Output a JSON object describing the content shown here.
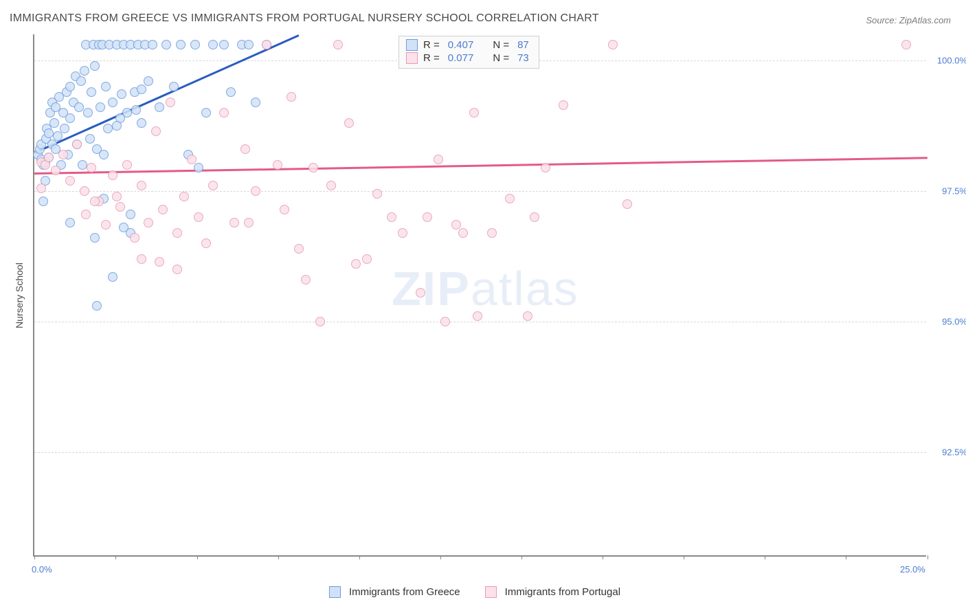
{
  "title": "IMMIGRANTS FROM GREECE VS IMMIGRANTS FROM PORTUGAL NURSERY SCHOOL CORRELATION CHART",
  "source": "Source: ZipAtlas.com",
  "y_axis_title": "Nursery School",
  "watermark": "ZIPatlas",
  "chart": {
    "type": "scatter",
    "xlim": [
      0.0,
      25.0
    ],
    "ylim": [
      90.5,
      100.5
    ],
    "x_ticks": [
      0,
      2.27,
      4.55,
      6.82,
      9.09,
      11.36,
      13.63,
      15.9,
      18.18,
      20.45,
      22.72,
      25.0
    ],
    "x_range_labels": [
      {
        "v": "0.0%",
        "at": 0.0
      },
      {
        "v": "25.0%",
        "at": 25.0
      }
    ],
    "y_gridlines": [
      92.5,
      95.0,
      97.5,
      100.0
    ],
    "y_tick_labels": [
      {
        "v": "92.5%",
        "at": 92.5
      },
      {
        "v": "95.0%",
        "at": 95.0
      },
      {
        "v": "97.5%",
        "at": 97.5
      },
      {
        "v": "100.0%",
        "at": 100.0
      }
    ],
    "background_color": "#ffffff",
    "grid_color": "#d8d8d8",
    "marker_radius": 7,
    "marker_border": 1.3,
    "series": [
      {
        "name": "Immigrants from Greece",
        "fill": "#d2e2f6",
        "stroke": "#6a9be0",
        "R": "0.407",
        "N": "87",
        "trend": {
          "x1": 0.0,
          "y1": 98.25,
          "x2": 7.4,
          "y2": 100.5,
          "color": "#2a5cc0"
        },
        "points": [
          [
            0.1,
            98.2
          ],
          [
            0.15,
            98.3
          ],
          [
            0.2,
            98.1
          ],
          [
            0.2,
            98.4
          ],
          [
            0.25,
            98.0
          ],
          [
            0.3,
            97.7
          ],
          [
            0.32,
            98.5
          ],
          [
            0.35,
            98.7
          ],
          [
            0.4,
            98.15
          ],
          [
            0.4,
            98.6
          ],
          [
            0.45,
            99.0
          ],
          [
            0.5,
            98.4
          ],
          [
            0.5,
            99.2
          ],
          [
            0.55,
            98.8
          ],
          [
            0.6,
            98.3
          ],
          [
            0.6,
            99.1
          ],
          [
            0.65,
            98.55
          ],
          [
            0.7,
            99.3
          ],
          [
            0.75,
            98.0
          ],
          [
            0.8,
            99.0
          ],
          [
            0.85,
            98.7
          ],
          [
            0.9,
            99.4
          ],
          [
            0.95,
            98.2
          ],
          [
            1.0,
            99.5
          ],
          [
            1.0,
            98.9
          ],
          [
            1.1,
            99.2
          ],
          [
            1.15,
            99.7
          ],
          [
            1.2,
            98.4
          ],
          [
            1.25,
            99.1
          ],
          [
            1.3,
            99.6
          ],
          [
            1.35,
            98.0
          ],
          [
            1.4,
            99.8
          ],
          [
            1.45,
            100.3
          ],
          [
            1.5,
            99.0
          ],
          [
            1.55,
            98.5
          ],
          [
            1.6,
            99.4
          ],
          [
            1.65,
            100.3
          ],
          [
            1.7,
            99.9
          ],
          [
            1.75,
            98.3
          ],
          [
            1.8,
            100.3
          ],
          [
            1.85,
            99.1
          ],
          [
            1.9,
            100.3
          ],
          [
            1.95,
            98.2
          ],
          [
            2.0,
            99.5
          ],
          [
            2.05,
            98.7
          ],
          [
            2.1,
            100.3
          ],
          [
            2.2,
            99.2
          ],
          [
            2.3,
            100.3
          ],
          [
            2.4,
            98.9
          ],
          [
            2.5,
            100.3
          ],
          [
            2.6,
            99.0
          ],
          [
            2.7,
            100.3
          ],
          [
            2.8,
            99.4
          ],
          [
            2.9,
            100.3
          ],
          [
            3.0,
            98.8
          ],
          [
            3.1,
            100.3
          ],
          [
            3.2,
            99.6
          ],
          [
            3.3,
            100.3
          ],
          [
            3.5,
            99.1
          ],
          [
            3.7,
            100.3
          ],
          [
            3.9,
            99.5
          ],
          [
            4.1,
            100.3
          ],
          [
            4.3,
            98.2
          ],
          [
            4.5,
            100.3
          ],
          [
            4.8,
            99.0
          ],
          [
            5.0,
            100.3
          ],
          [
            5.3,
            100.3
          ],
          [
            5.5,
            99.4
          ],
          [
            5.8,
            100.3
          ],
          [
            6.0,
            100.3
          ],
          [
            6.2,
            99.2
          ],
          [
            6.5,
            100.3
          ],
          [
            1.0,
            96.9
          ],
          [
            1.7,
            96.6
          ],
          [
            1.75,
            95.3
          ],
          [
            2.2,
            95.85
          ],
          [
            2.5,
            96.8
          ],
          [
            2.7,
            96.7
          ],
          [
            4.6,
            97.95
          ],
          [
            2.7,
            97.05
          ],
          [
            1.95,
            97.35
          ],
          [
            0.25,
            97.3
          ],
          [
            0.3,
            98.05
          ],
          [
            2.45,
            99.35
          ],
          [
            3.0,
            99.45
          ],
          [
            2.85,
            99.05
          ],
          [
            2.3,
            98.75
          ]
        ]
      },
      {
        "name": "Immigrants from Portugal",
        "fill": "#fbe1e9",
        "stroke": "#e89ab2",
        "R": "0.077",
        "N": "73",
        "trend": {
          "x1": 0.0,
          "y1": 97.85,
          "x2": 25.0,
          "y2": 98.15,
          "color": "#e45a88"
        },
        "points": [
          [
            0.2,
            98.05
          ],
          [
            0.3,
            98.0
          ],
          [
            0.4,
            98.15
          ],
          [
            0.6,
            97.9
          ],
          [
            0.8,
            98.2
          ],
          [
            1.0,
            97.7
          ],
          [
            1.2,
            98.4
          ],
          [
            1.4,
            97.5
          ],
          [
            1.6,
            97.95
          ],
          [
            1.8,
            97.3
          ],
          [
            2.0,
            96.85
          ],
          [
            2.2,
            97.8
          ],
          [
            2.4,
            97.2
          ],
          [
            2.6,
            98.0
          ],
          [
            2.8,
            96.6
          ],
          [
            3.0,
            97.6
          ],
          [
            3.2,
            96.9
          ],
          [
            3.4,
            98.65
          ],
          [
            3.6,
            97.15
          ],
          [
            3.8,
            99.2
          ],
          [
            4.0,
            96.7
          ],
          [
            4.2,
            97.4
          ],
          [
            4.4,
            98.1
          ],
          [
            4.6,
            97.0
          ],
          [
            4.8,
            96.5
          ],
          [
            5.0,
            97.6
          ],
          [
            5.3,
            99.0
          ],
          [
            5.6,
            96.9
          ],
          [
            5.9,
            98.3
          ],
          [
            6.0,
            96.9
          ],
          [
            6.2,
            97.5
          ],
          [
            6.5,
            100.3
          ],
          [
            6.8,
            98.0
          ],
          [
            7.0,
            97.15
          ],
          [
            7.2,
            99.3
          ],
          [
            7.4,
            96.4
          ],
          [
            7.6,
            95.8
          ],
          [
            7.8,
            97.95
          ],
          [
            8.0,
            95.0
          ],
          [
            8.3,
            97.6
          ],
          [
            8.5,
            100.3
          ],
          [
            8.8,
            98.8
          ],
          [
            9.0,
            96.1
          ],
          [
            9.3,
            96.2
          ],
          [
            9.6,
            97.45
          ],
          [
            10.0,
            97.0
          ],
          [
            10.3,
            96.7
          ],
          [
            10.8,
            95.55
          ],
          [
            11.0,
            97.0
          ],
          [
            11.3,
            98.1
          ],
          [
            11.5,
            95.0
          ],
          [
            11.8,
            96.85
          ],
          [
            12.0,
            96.7
          ],
          [
            12.3,
            99.0
          ],
          [
            12.4,
            95.1
          ],
          [
            12.8,
            96.7
          ],
          [
            13.0,
            100.3
          ],
          [
            13.3,
            97.35
          ],
          [
            13.4,
            100.3
          ],
          [
            13.8,
            95.1
          ],
          [
            14.0,
            97.0
          ],
          [
            14.3,
            97.95
          ],
          [
            14.8,
            99.15
          ],
          [
            16.6,
            97.25
          ],
          [
            16.2,
            100.3
          ],
          [
            24.4,
            100.3
          ],
          [
            4.0,
            96.0
          ],
          [
            0.2,
            97.55
          ],
          [
            1.45,
            97.05
          ],
          [
            1.7,
            97.3
          ],
          [
            3.5,
            96.15
          ],
          [
            3.0,
            96.2
          ],
          [
            2.3,
            97.4
          ]
        ]
      }
    ]
  },
  "legend_bottom": [
    {
      "label": "Immigrants from Greece",
      "fill": "#d2e2f6",
      "stroke": "#6a9be0"
    },
    {
      "label": "Immigrants from Portugal",
      "fill": "#fbe1e9",
      "stroke": "#e89ab2"
    }
  ]
}
